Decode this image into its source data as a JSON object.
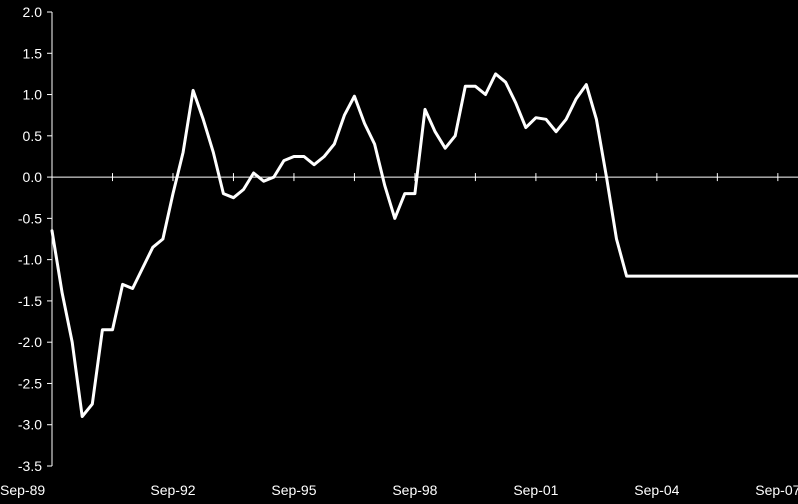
{
  "chart_data": {
    "type": "line",
    "title": "",
    "xlabel": "",
    "ylabel": "",
    "xlim": [
      "Sep-89",
      "Mar-08"
    ],
    "ylim": [
      -3.5,
      2.0
    ],
    "y_ticks": [
      2.0,
      1.5,
      1.0,
      0.5,
      0.0,
      -0.5,
      -1.0,
      -1.5,
      -2.0,
      -2.5,
      -3.0,
      -3.5
    ],
    "y_tick_labels": [
      "2.0",
      "1.5",
      "1.0",
      "0.5",
      "0.0",
      "-0.5",
      "-1.0",
      "-1.5",
      "-2.0",
      "-2.5",
      "-3.0",
      "-3.5"
    ],
    "x_tick_labels": [
      "Sep-89",
      "Sep-92",
      "Sep-95",
      "Sep-98",
      "Sep-01",
      "Sep-04",
      "Sep-07"
    ],
    "grid": false,
    "legend": "none",
    "line_color": "#ffffff",
    "background_color": "#000000",
    "series": [
      {
        "x": [
          "1989-09",
          "1989-12",
          "1990-03",
          "1990-06",
          "1990-09",
          "1990-12",
          "1991-03",
          "1991-06",
          "1991-09",
          "1991-12",
          "1992-03",
          "1992-06",
          "1992-09",
          "1992-12",
          "1993-03",
          "1993-06",
          "1993-09",
          "1993-12",
          "1994-03",
          "1994-06",
          "1994-09",
          "1994-12",
          "1995-03",
          "1995-06",
          "1995-09",
          "1995-12",
          "1996-03",
          "1996-06",
          "1996-09",
          "1996-12",
          "1997-03",
          "1997-06",
          "1997-09",
          "1997-12",
          "1998-03",
          "1998-06",
          "1998-09",
          "1998-12",
          "1999-03",
          "1999-06",
          "1999-09",
          "1999-12",
          "2000-03",
          "2000-06",
          "2000-09",
          "2000-12",
          "2001-03",
          "2001-06",
          "2001-09",
          "2001-12",
          "2002-03",
          "2002-06",
          "2002-09",
          "2002-12",
          "2003-03",
          "2003-06",
          "2003-09",
          "2003-12",
          "2004-03",
          "2004-06",
          "2004-09",
          "2004-12",
          "2005-03",
          "2005-06",
          "2005-09",
          "2005-12",
          "2006-03",
          "2006-06",
          "2006-09",
          "2006-12",
          "2007-03",
          "2007-06",
          "2007-09",
          "2007-12",
          "2008-03"
        ],
        "values": [
          -0.65,
          -1.4,
          -2.0,
          -2.9,
          -2.75,
          -1.85,
          -1.85,
          -1.3,
          -1.35,
          -1.1,
          -0.85,
          -0.75,
          -0.2,
          0.3,
          1.05,
          0.7,
          0.3,
          -0.2,
          -0.25,
          -0.15,
          0.05,
          -0.05,
          0.0,
          0.2,
          0.25,
          0.25,
          0.15,
          0.25,
          0.4,
          0.75,
          0.98,
          0.65,
          0.4,
          -0.1,
          -0.5,
          -0.2,
          -0.2,
          0.82,
          0.55,
          0.35,
          0.5,
          1.1,
          1.1,
          1.0,
          1.25,
          1.15,
          0.9,
          0.6,
          0.72,
          0.7,
          0.55,
          0.7,
          0.95,
          1.12,
          0.7,
          0.0,
          -0.75,
          -1.2,
          -1.2,
          -1.2,
          -1.2,
          -1.2,
          -1.2,
          -1.2,
          -1.2,
          -1.2,
          -1.2,
          -1.2,
          -1.2,
          -1.2,
          -1.2,
          -1.2,
          -1.2,
          -1.2,
          -1.2
        ]
      }
    ]
  }
}
